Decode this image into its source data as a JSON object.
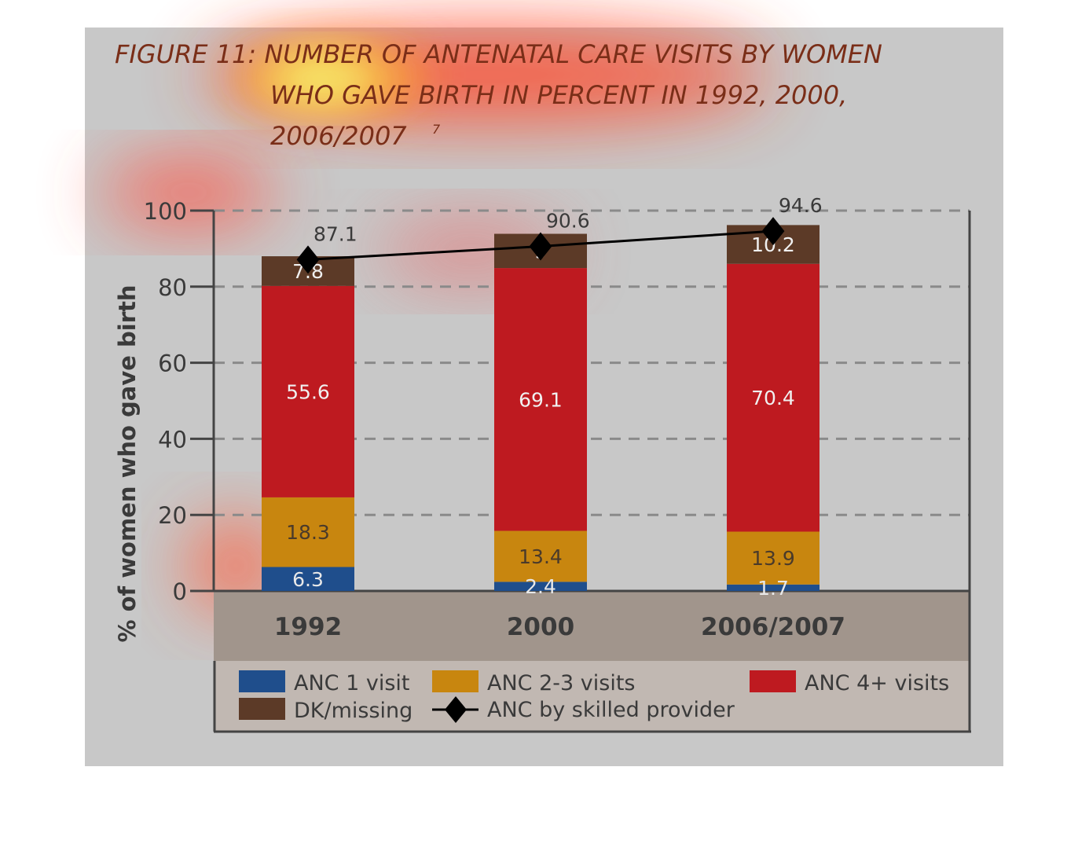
{
  "figure": {
    "title_line1": "FIGURE 11: NUMBER OF ANTENATAL CARE VISITS  BY WOMEN",
    "title_line2": "WHO GAVE BIRTH IN PERCENT IN 1992, 2000,",
    "title_line3": "2006/2007",
    "title_footnote": "7"
  },
  "chart_data": {
    "type": "bar",
    "stacked": true,
    "categories": [
      "1992",
      "2000",
      "2006/2007"
    ],
    "ylabel": "% of women who gave birth",
    "ylim": [
      0,
      100
    ],
    "yticks": [
      0,
      20,
      40,
      60,
      80,
      100
    ],
    "grid": "horizontal dashed",
    "legend_position": "bottom",
    "series": [
      {
        "name": "ANC 1 visit",
        "color": "#1f4e8c",
        "values": [
          6.3,
          2.4,
          1.7
        ]
      },
      {
        "name": "ANC 2-3 visits",
        "color": "#c8860f",
        "values": [
          18.3,
          13.4,
          13.9
        ]
      },
      {
        "name": "ANC 4+ visits",
        "color": "#be1a20",
        "values": [
          55.6,
          69.1,
          70.4
        ]
      },
      {
        "name": "DK/missing",
        "color": "#5c3a27",
        "values": [
          7.8,
          9,
          10.2
        ]
      }
    ],
    "line_series": {
      "name": "ANC by skilled provider",
      "color": "#000000",
      "values": [
        87.1,
        90.6,
        94.6
      ],
      "labels": [
        "87.1",
        "90.6",
        "94.6"
      ]
    },
    "segment_labels": [
      [
        "6.3",
        "2.4",
        "1.7"
      ],
      [
        "18.3",
        "13.4",
        "13.9"
      ],
      [
        "55.6",
        "69.1",
        "70.4"
      ],
      [
        "7.8",
        "9",
        "10.2"
      ]
    ]
  },
  "overlay": {
    "background_color": "#c8c8c8",
    "heat_colors": [
      "#ffff50",
      "#ff3a1a"
    ]
  }
}
